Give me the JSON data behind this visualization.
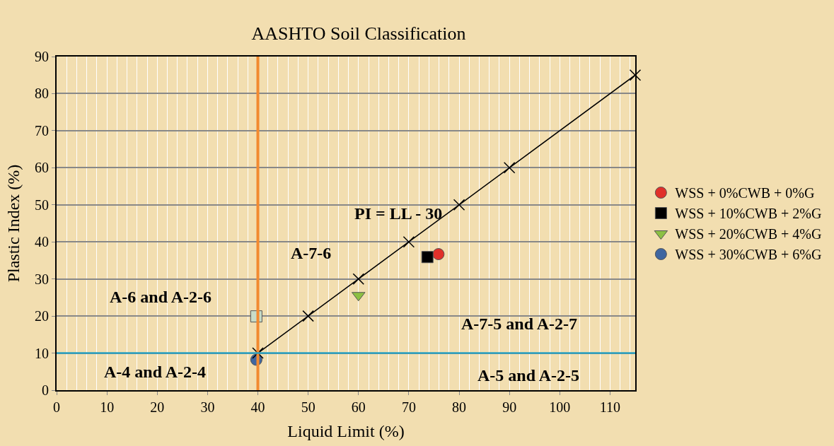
{
  "chart_data": {
    "type": "scatter",
    "title": "AASHTO Soil Classification",
    "xlabel": "Liquid Limit (%)",
    "ylabel": "Plastic Index (%)",
    "xlim": [
      0,
      115
    ],
    "xticks": [
      0,
      10,
      20,
      30,
      40,
      50,
      60,
      70,
      80,
      90,
      100,
      110
    ],
    "ylim": [
      0,
      90
    ],
    "yticks": [
      0,
      10,
      20,
      30,
      40,
      50,
      60,
      70,
      80,
      90
    ],
    "grid": true,
    "legend": "right",
    "series": [
      {
        "type": "line",
        "color": "#000000",
        "marker": "cross",
        "x": [
          40,
          50,
          60,
          70,
          80,
          90,
          115
        ],
        "values": [
          10,
          20,
          30,
          40,
          50,
          60,
          85
        ]
      },
      {
        "color": "#c8dcc8",
        "marker": "square",
        "x": [
          39.7
        ],
        "values": [
          19.9
        ]
      },
      {
        "name": "WSS + 0%CWB + 0%G",
        "color": "#e0302a",
        "marker": "circle",
        "x": [
          75.9
        ],
        "values": [
          36.7
        ]
      },
      {
        "name": "WSS + 10%CWB + 2%G",
        "color": "#000000",
        "marker": "square",
        "x": [
          73.7
        ],
        "values": [
          35.9
        ]
      },
      {
        "name": "WSS + 20%CWB + 4%G",
        "color": "#8cc043",
        "marker": "triangle",
        "x": [
          60.0
        ],
        "values": [
          25.6
        ]
      },
      {
        "name": "WSS + 30%CWB + 6%G",
        "color": "#3f66a0",
        "marker": "circle",
        "x": [
          39.7
        ],
        "values": [
          8.2
        ]
      }
    ],
    "ref_lines": [
      {
        "axis": "x",
        "value": 40,
        "color": "#f28a30"
      },
      {
        "axis": "y",
        "value": 10,
        "color": "#2aa0c0"
      }
    ],
    "annotations": [
      "PI = LL - 30",
      "A-7-6",
      "A-6 and A-2-6",
      "A-7-5 and A-2-7",
      "A-4 and A-2-4",
      "A-5 and A-2-5"
    ]
  }
}
